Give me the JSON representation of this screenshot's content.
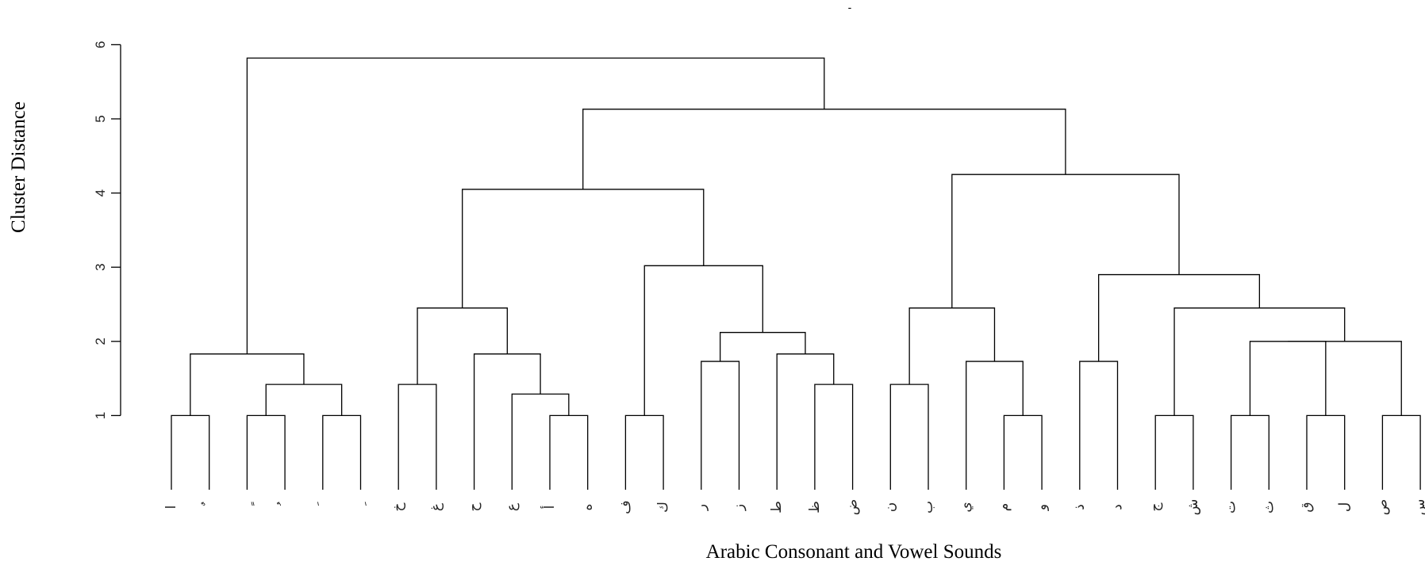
{
  "chart_data": {
    "type": "dendrogram",
    "title": "-",
    "xlabel": "Arabic Consonant and Vowel Sounds",
    "ylabel": "Cluster Distance",
    "ylim": [
      0,
      6
    ],
    "yticks": [
      1,
      2,
      3,
      4,
      5,
      6
    ],
    "leaves": [
      "ا",
      "ٌ",
      "ٍ",
      "ُ",
      "َ",
      "ِ",
      "خ",
      "غ",
      "ح",
      "ع",
      "أ",
      "ه",
      "ف",
      "ك",
      "ر",
      "ز",
      "ط",
      "ظ",
      "ض",
      "ن",
      "ب",
      "ي",
      "م",
      "و",
      "ذ",
      "د",
      "ج",
      "ش",
      "ت",
      "ث",
      "ق",
      "ل",
      "ص",
      "س"
    ],
    "merges": [
      {
        "a": 0,
        "b": 1,
        "height": 1.0
      },
      {
        "a": 2,
        "b": 3,
        "height": 1.0
      },
      {
        "a": 4,
        "b": 5,
        "height": 1.0
      },
      {
        "a": 34,
        "b": 35,
        "height": 1.42
      },
      {
        "a": 33,
        "b": 36,
        "height": 1.83
      },
      {
        "a": 6,
        "b": 7,
        "height": 1.42
      },
      {
        "a": 10,
        "b": 11,
        "height": 1.0
      },
      {
        "a": 9,
        "b": 38,
        "height": 1.29
      },
      {
        "a": 8,
        "b": 39,
        "height": 1.83
      },
      {
        "a": 37,
        "b": 40,
        "height": 2.45
      },
      {
        "a": 12,
        "b": 13,
        "height": 1.0
      },
      {
        "a": 14,
        "b": 15,
        "height": 1.73
      },
      {
        "a": 17,
        "b": 18,
        "height": 1.42
      },
      {
        "a": 16,
        "b": 44,
        "height": 1.83
      },
      {
        "a": 43,
        "b": 45,
        "height": 2.12
      },
      {
        "a": 42,
        "b": 46,
        "height": 3.02
      },
      {
        "a": 41,
        "b": 47,
        "height": 4.05
      },
      {
        "a": 19,
        "b": 20,
        "height": 1.42
      },
      {
        "a": 22,
        "b": 23,
        "height": 1.0
      },
      {
        "a": 21,
        "b": 50,
        "height": 1.73
      },
      {
        "a": 49,
        "b": 51,
        "height": 2.45
      },
      {
        "a": 24,
        "b": 25,
        "height": 1.73
      },
      {
        "a": 26,
        "b": 27,
        "height": 1.0
      },
      {
        "a": 28,
        "b": 29,
        "height": 1.0
      },
      {
        "a": 30,
        "b": 31,
        "height": 1.0
      },
      {
        "a": 55,
        "b": 56,
        "height": 2.0
      },
      {
        "a": 32,
        "b": 33,
        "height": 1.0,
        "note_skip": true
      }
    ],
    "clusters": [
      {
        "left": [
          0,
          1
        ],
        "height": 1.0
      },
      {
        "left": [
          2,
          3
        ],
        "height": 1.0
      },
      {
        "left": [
          4,
          5
        ],
        "height": 1.0
      }
    ]
  }
}
